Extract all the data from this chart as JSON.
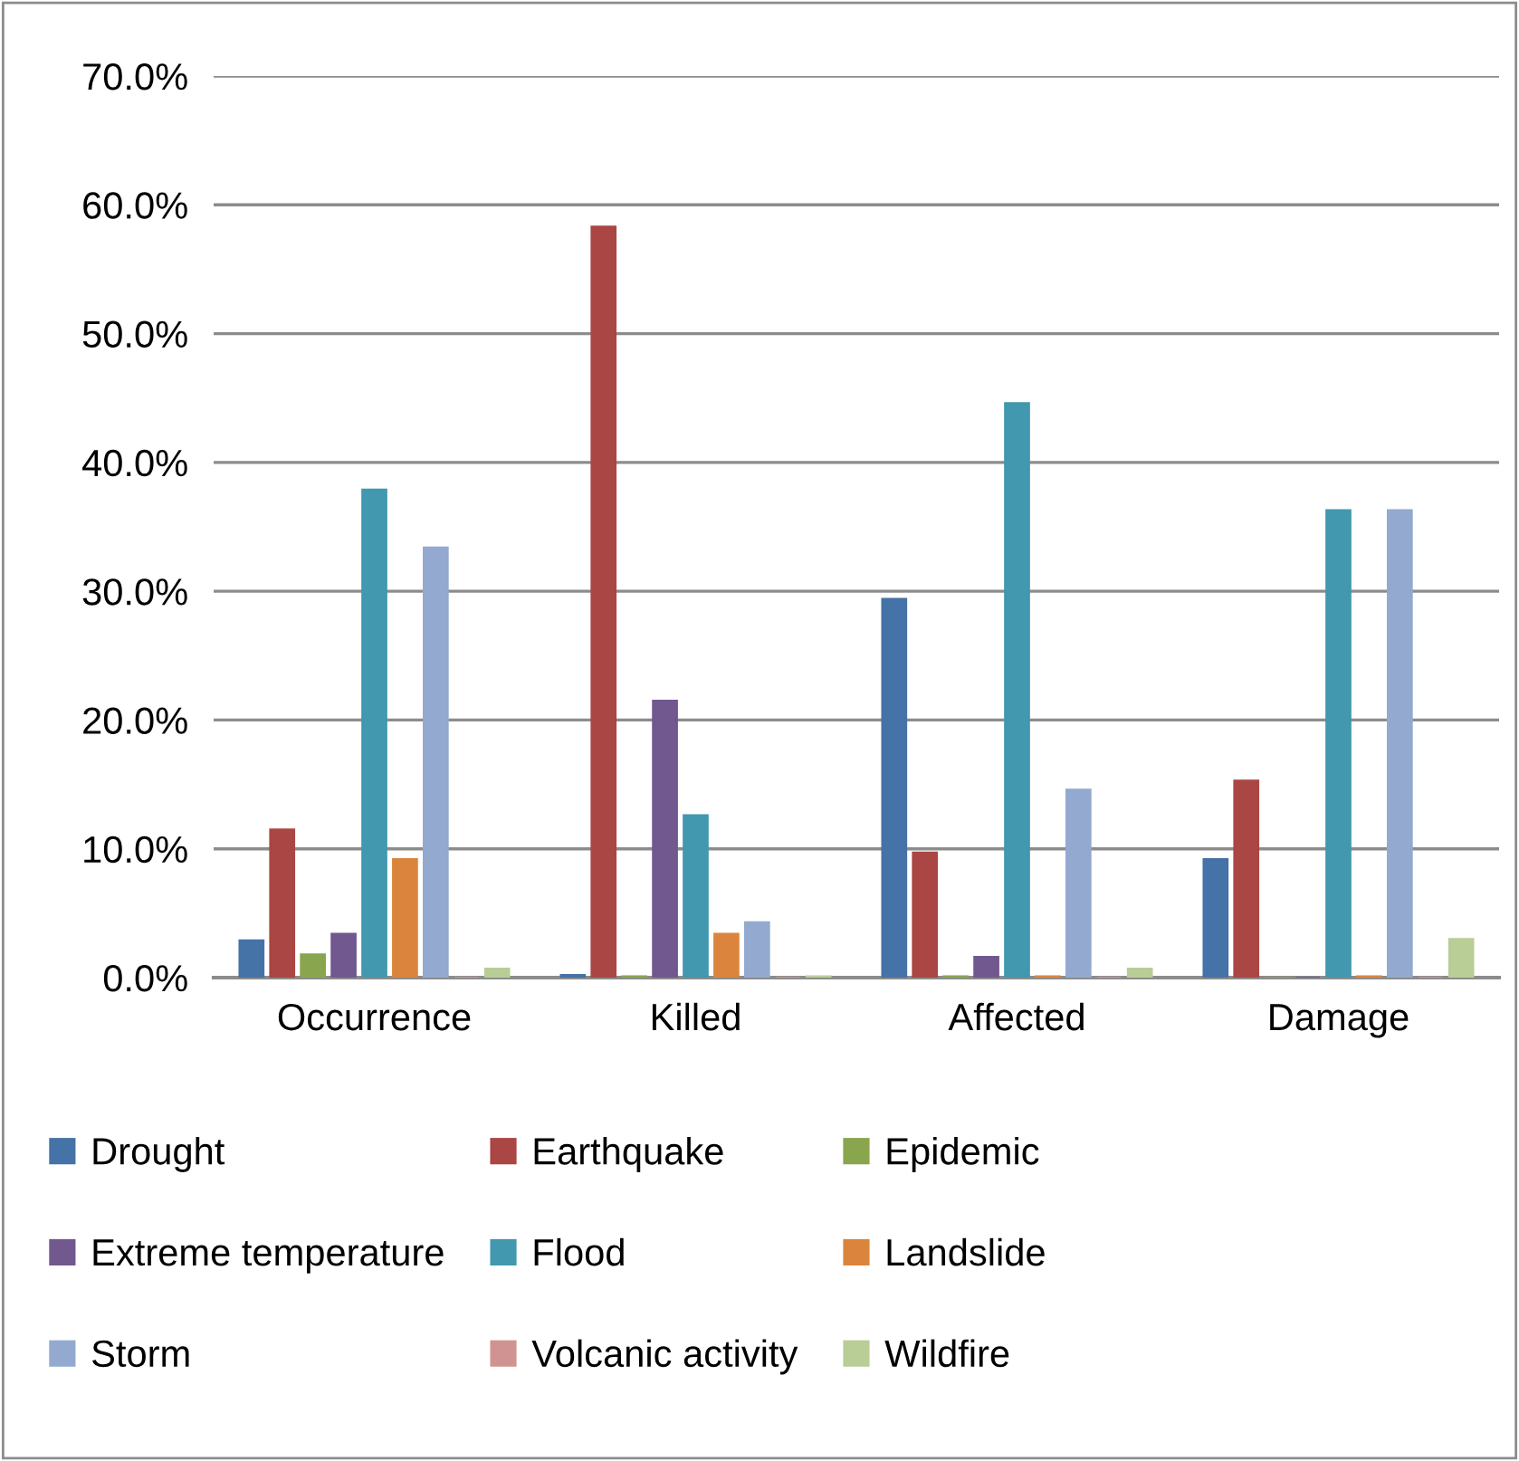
{
  "chart_data": {
    "type": "bar",
    "categories": [
      "Occurrence",
      "Killed",
      "Affected",
      "Damage"
    ],
    "series": [
      {
        "name": "Drought",
        "color": "#4572a7",
        "values": [
          2.9,
          0.2,
          29.4,
          9.2
        ]
      },
      {
        "name": "Earthquake",
        "color": "#aa4643",
        "values": [
          11.5,
          58.3,
          9.7,
          15.3
        ]
      },
      {
        "name": "Epidemic",
        "color": "#89a54e",
        "values": [
          1.8,
          0.1,
          0.1,
          0
        ]
      },
      {
        "name": "Extreme temperature",
        "color": "#71588f",
        "values": [
          3.4,
          21.5,
          1.6,
          0
        ]
      },
      {
        "name": "Flood",
        "color": "#4198af",
        "values": [
          37.9,
          12.6,
          44.6,
          36.3
        ]
      },
      {
        "name": "Landslide",
        "color": "#db843d",
        "values": [
          9.2,
          3.4,
          0.1,
          0.1
        ]
      },
      {
        "name": "Storm",
        "color": "#93a9cf",
        "values": [
          33.4,
          4.3,
          14.6,
          36.3
        ]
      },
      {
        "name": "Volcanic activity",
        "color": "#d19392",
        "values": [
          0,
          0,
          0,
          0
        ]
      },
      {
        "name": "Wildfire",
        "color": "#b9cd96",
        "values": [
          0.7,
          0.1,
          0.7,
          3.0
        ]
      }
    ],
    "ylim": [
      0,
      70
    ],
    "yticks": [
      {
        "value": 0,
        "label": "0.0%"
      },
      {
        "value": 10,
        "label": "10.0%"
      },
      {
        "value": 20,
        "label": "20.0%"
      },
      {
        "value": 30,
        "label": "30.0%"
      },
      {
        "value": 40,
        "label": "40.0%"
      },
      {
        "value": 50,
        "label": "50.0%"
      },
      {
        "value": 60,
        "label": "60.0%"
      },
      {
        "value": 70,
        "label": "70.0%"
      }
    ],
    "grid": "y",
    "legend": "bottom"
  }
}
